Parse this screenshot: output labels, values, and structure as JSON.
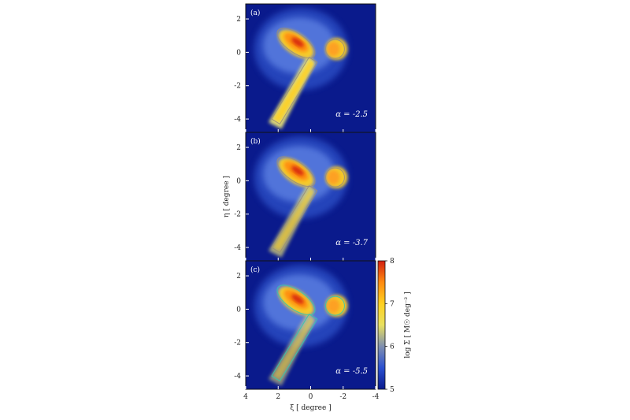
{
  "chart_data": {
    "type": "heatmap",
    "xlabel": "ξ [ degree ]",
    "ylabel": "η [ degree ]",
    "xlim": [
      4,
      -4
    ],
    "ylim": [
      -4.8,
      2.9
    ],
    "xticks": [
      4,
      2,
      0,
      -2,
      -4
    ],
    "yticks": [
      2,
      0,
      -2,
      -4
    ],
    "panels": [
      {
        "label": "(a)",
        "annotation": "α = -2.5",
        "alpha": -2.5,
        "tail_strength": 1.0,
        "contour_color": "#9a8f7a"
      },
      {
        "label": "(b)",
        "annotation": "α = -3.7",
        "alpha": -3.7,
        "tail_strength": 0.55,
        "contour_color": "#9a8f7a"
      },
      {
        "label": "(c)",
        "annotation": "α = -5.5",
        "alpha": -5.5,
        "tail_strength": 0.35,
        "contour_color": "#33c8b0"
      }
    ],
    "colorbar": {
      "label": "log Σ [ M☉ deg⁻² ]",
      "min": 5,
      "max": 8,
      "ticks": [
        5,
        6,
        7,
        8
      ],
      "colors": [
        "#0a1a8c",
        "#2a4fd0",
        "#7f8fb0",
        "#e8e060",
        "#ffd020",
        "#ff8a10",
        "#d21e10"
      ]
    }
  }
}
